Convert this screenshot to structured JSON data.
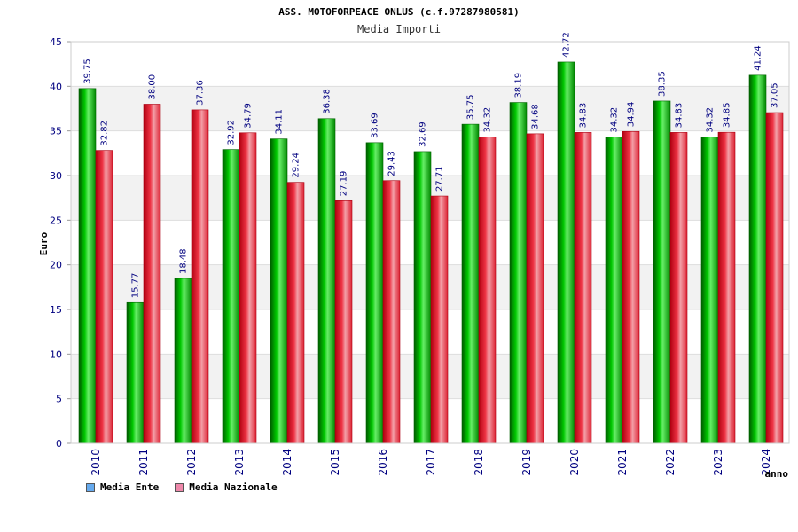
{
  "colors": {
    "ente_fill": "#00b000",
    "ente_dark": "#006400",
    "nazionale_fill": "#ee2233",
    "nazionale_dark": "#aa0011",
    "axis_text": "#000080",
    "legend_ente": "#66aaee",
    "legend_nazionale": "#ee88aa",
    "band": "#f2f2f2",
    "grid": "#dddddd"
  },
  "chart_data": {
    "type": "bar",
    "title": "ASS. MOTOFORPEACE ONLUS (c.f.97287980581)",
    "subtitle": "Media Importi",
    "xlabel": "anno",
    "ylabel": "Euro",
    "ylim": [
      0,
      45
    ],
    "yticks": [
      "0",
      "5",
      "10",
      "15",
      "20",
      "25",
      "30",
      "35",
      "40",
      "45"
    ],
    "grid": true,
    "legend_position": "bottom-left",
    "categories": [
      "2010",
      "2011",
      "2012",
      "2013",
      "2014",
      "2015",
      "2016",
      "2017",
      "2018",
      "2019",
      "2020",
      "2021",
      "2022",
      "2023",
      "2024"
    ],
    "series": [
      {
        "name": "Media Ente",
        "values": [
          39.75,
          15.77,
          18.48,
          32.92,
          34.11,
          36.38,
          33.69,
          32.69,
          35.75,
          38.19,
          42.72,
          34.32,
          38.35,
          34.32,
          41.24
        ],
        "labels": [
          "39.75",
          "15.77",
          "18.48",
          "32.92",
          "34.11",
          "36.38",
          "33.69",
          "32.69",
          "35.75",
          "38.19",
          "42.72",
          "34.32",
          "38.35",
          "34.32",
          "41.24"
        ]
      },
      {
        "name": "Media Nazionale",
        "values": [
          32.82,
          38.0,
          37.36,
          34.79,
          29.24,
          27.19,
          29.43,
          27.71,
          34.32,
          34.68,
          34.83,
          34.94,
          34.83,
          34.85,
          37.05
        ],
        "labels": [
          "32.82",
          "38.00",
          "37.36",
          "34.79",
          "29.24",
          "27.19",
          "29.43",
          "27.71",
          "34.32",
          "34.68",
          "34.83",
          "34.94",
          "34.83",
          "34.85",
          "37.05"
        ]
      }
    ]
  }
}
